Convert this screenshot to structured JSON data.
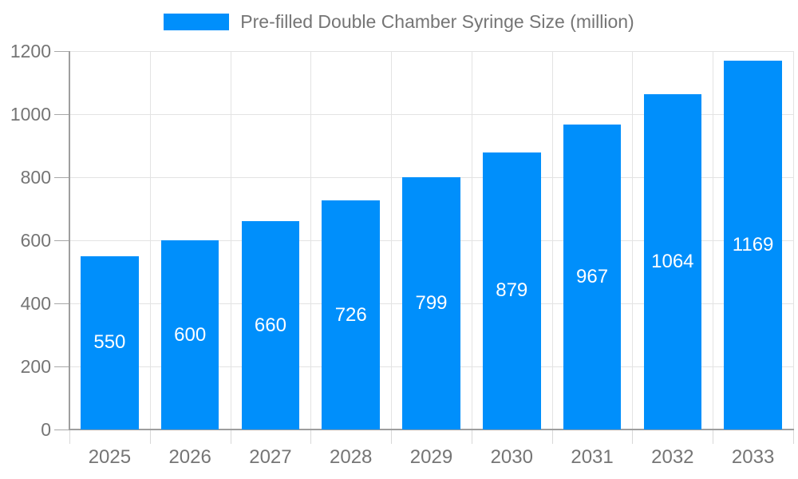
{
  "chart_data": {
    "type": "bar",
    "series_name": "Pre-filled Double Chamber Syringe Size (million)",
    "categories": [
      "2025",
      "2026",
      "2027",
      "2028",
      "2029",
      "2030",
      "2031",
      "2032",
      "2033"
    ],
    "values": [
      550,
      600,
      660,
      726,
      799,
      879,
      967,
      1064,
      1169
    ],
    "title": "",
    "xlabel": "",
    "ylabel": "",
    "ylim": [
      0,
      1200
    ],
    "y_ticks": [
      "0",
      "200",
      "400",
      "600",
      "800",
      "1000",
      "1200"
    ],
    "grid": true,
    "legend_position": "top",
    "colors": {
      "bar": "#008FFB",
      "grid_line": "#e3e3e3",
      "axis_line": "#9e9e9e",
      "y_tick_mark": "#a8a8a8",
      "x_tick_mark": "#d8d8d8",
      "tick_text": "#757575",
      "legend_text": "#757575",
      "value_label": "#ffffff",
      "background": "#ffffff"
    }
  }
}
